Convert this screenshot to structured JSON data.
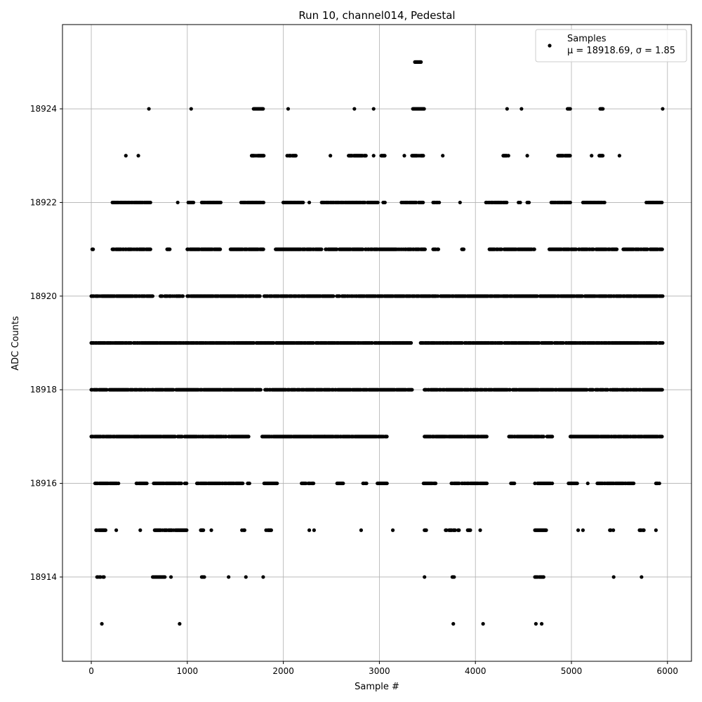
{
  "chart_data": {
    "type": "scatter",
    "title": "Run 10, channel014, Pedestal",
    "xlabel": "Sample #",
    "ylabel": "ADC Counts",
    "xlim": [
      -300,
      6250
    ],
    "ylim": [
      18912.2,
      18925.8
    ],
    "x_ticks": [
      0,
      1000,
      2000,
      3000,
      4000,
      5000,
      6000
    ],
    "y_ticks": [
      18914,
      18916,
      18918,
      18920,
      18922,
      18924
    ],
    "grid": true,
    "legend": {
      "position": "top-right",
      "series_label": "Samples",
      "stats_prefix": "μ = 18918.69, ",
      "stats_suffix": "σ = 1.85"
    },
    "series": [
      {
        "name": "Samples",
        "marker_color": "#000000",
        "levels": [
          {
            "y": 18925,
            "ranges": [
              [
                3370,
                3440
              ]
            ]
          },
          {
            "y": 18924,
            "ranges": [
              [
                600,
                600
              ],
              [
                1040,
                1040
              ],
              [
                1690,
                1790
              ],
              [
                2050,
                2050
              ],
              [
                2740,
                2740
              ],
              [
                2940,
                2940
              ],
              [
                3340,
                3470
              ],
              [
                4330,
                4330
              ],
              [
                4480,
                4480
              ],
              [
                4960,
                4990
              ],
              [
                5300,
                5330
              ],
              [
                5950,
                5950
              ]
            ]
          },
          {
            "y": 18923,
            "ranges": [
              [
                360,
                360
              ],
              [
                490,
                490
              ],
              [
                1670,
                1800
              ],
              [
                2040,
                2130
              ],
              [
                2490,
                2490
              ],
              [
                2680,
                2860
              ],
              [
                2940,
                2940
              ],
              [
                3020,
                3060
              ],
              [
                3260,
                3260
              ],
              [
                3340,
                3460
              ],
              [
                3660,
                3660
              ],
              [
                4290,
                4350
              ],
              [
                4540,
                4540
              ],
              [
                4860,
                4990
              ],
              [
                5210,
                5210
              ],
              [
                5290,
                5330
              ],
              [
                5500,
                5500
              ]
            ]
          },
          {
            "y": 18922,
            "ranges": [
              [
                220,
                620
              ],
              [
                900,
                900
              ],
              [
                1010,
                1070
              ],
              [
                1150,
                1350
              ],
              [
                1560,
                1800
              ],
              [
                1990,
                2210
              ],
              [
                2270,
                2270
              ],
              [
                2390,
                2990
              ],
              [
                3040,
                3060
              ],
              [
                3230,
                3470
              ],
              [
                3560,
                3640
              ],
              [
                3840,
                3840
              ],
              [
                4110,
                4340
              ],
              [
                4440,
                4470
              ],
              [
                4540,
                4570
              ],
              [
                4790,
                4990
              ],
              [
                5120,
                5350
              ],
              [
                5780,
                5950
              ]
            ]
          },
          {
            "y": 18921,
            "ranges": [
              [
                10,
                30
              ],
              [
                220,
                620
              ],
              [
                790,
                820
              ],
              [
                1000,
                1350
              ],
              [
                1450,
                1800
              ],
              [
                1920,
                2400
              ],
              [
                2440,
                3480
              ],
              [
                3560,
                3640
              ],
              [
                3860,
                3880
              ],
              [
                4110,
                4620
              ],
              [
                4770,
                5480
              ],
              [
                5540,
                5950
              ]
            ]
          },
          {
            "y": 18920,
            "ranges": [
              [
                0,
                640
              ],
              [
                720,
                960
              ],
              [
                1000,
                5950
              ]
            ]
          },
          {
            "y": 18919,
            "ranges": [
              [
                0,
                3330
              ],
              [
                3430,
                5950
              ]
            ]
          },
          {
            "y": 18918,
            "ranges": [
              [
                0,
                1770
              ],
              [
                1810,
                3340
              ],
              [
                3470,
                5950
              ]
            ]
          },
          {
            "y": 18917,
            "ranges": [
              [
                0,
                1640
              ],
              [
                1780,
                2430
              ],
              [
                2430,
                3080
              ],
              [
                3470,
                4120
              ],
              [
                4350,
                4800
              ],
              [
                4980,
                5950
              ]
            ]
          },
          {
            "y": 18916,
            "ranges": [
              [
                40,
                300
              ],
              [
                470,
                580
              ],
              [
                650,
                1000
              ],
              [
                1100,
                1580
              ],
              [
                1620,
                1650
              ],
              [
                1800,
                1940
              ],
              [
                2190,
                2240
              ],
              [
                2260,
                2320
              ],
              [
                2560,
                2630
              ],
              [
                2830,
                2870
              ],
              [
                2980,
                3080
              ],
              [
                3460,
                3590
              ],
              [
                3750,
                4130
              ],
              [
                4370,
                4410
              ],
              [
                4620,
                4800
              ],
              [
                4970,
                5060
              ],
              [
                5170,
                5170
              ],
              [
                5270,
                5650
              ],
              [
                5880,
                5920
              ]
            ]
          },
          {
            "y": 18915,
            "ranges": [
              [
                50,
                150
              ],
              [
                260,
                260
              ],
              [
                510,
                510
              ],
              [
                660,
                1000
              ],
              [
                1140,
                1170
              ],
              [
                1250,
                1250
              ],
              [
                1560,
                1600
              ],
              [
                1820,
                1880
              ],
              [
                2270,
                2270
              ],
              [
                2320,
                2320
              ],
              [
                2810,
                2810
              ],
              [
                3140,
                3140
              ],
              [
                3470,
                3500
              ],
              [
                3690,
                3790
              ],
              [
                3820,
                3830
              ],
              [
                3920,
                3950
              ],
              [
                4050,
                4050
              ],
              [
                4620,
                4740
              ],
              [
                5070,
                5070
              ],
              [
                5120,
                5120
              ],
              [
                5400,
                5440
              ],
              [
                5700,
                5760
              ],
              [
                5880,
                5880
              ]
            ]
          },
          {
            "y": 18914,
            "ranges": [
              [
                60,
                140
              ],
              [
                640,
                780
              ],
              [
                830,
                830
              ],
              [
                1150,
                1180
              ],
              [
                1430,
                1430
              ],
              [
                1610,
                1610
              ],
              [
                1790,
                1790
              ],
              [
                3470,
                3470
              ],
              [
                3760,
                3780
              ],
              [
                4620,
                4720
              ],
              [
                5440,
                5440
              ],
              [
                5730,
                5730
              ]
            ]
          },
          {
            "y": 18913,
            "ranges": [
              [
                110,
                110
              ],
              [
                920,
                920
              ],
              [
                3770,
                3770
              ],
              [
                4080,
                4080
              ],
              [
                4630,
                4630
              ],
              [
                4690,
                4690
              ]
            ]
          }
        ]
      }
    ]
  }
}
